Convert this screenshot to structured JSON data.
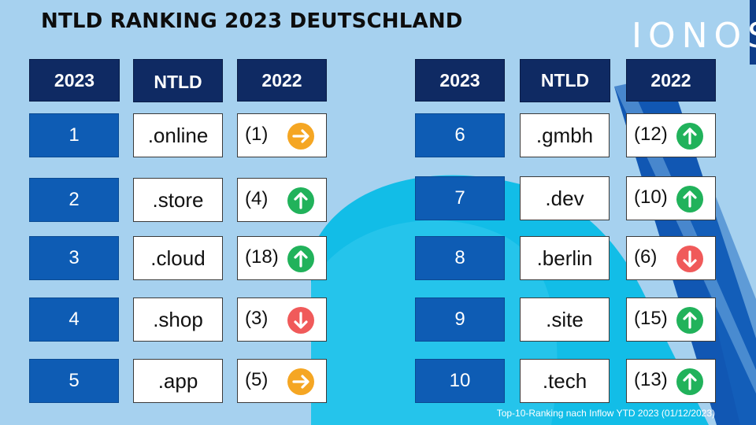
{
  "title": "NTLD RANKING 2023 DEUTSCHLAND",
  "logo": "IONOS",
  "headers": {
    "year_current": "2023",
    "ntld": "NTLD",
    "year_previous": "2022"
  },
  "colors": {
    "up": "#21b25b",
    "same": "#f5a623",
    "down": "#f05a5a",
    "header_bg": "#0f2a63",
    "rank_bg": "#0e5cb4"
  },
  "rows": [
    {
      "rank": "1",
      "tld": ".online",
      "prev": "(1)",
      "trend": "same"
    },
    {
      "rank": "2",
      "tld": ".store",
      "prev": "(4)",
      "trend": "up"
    },
    {
      "rank": "3",
      "tld": ".cloud",
      "prev": "(18)",
      "trend": "up"
    },
    {
      "rank": "4",
      "tld": ".shop",
      "prev": "(3)",
      "trend": "down"
    },
    {
      "rank": "5",
      "tld": ".app",
      "prev": "(5)",
      "trend": "same"
    },
    {
      "rank": "6",
      "tld": ".gmbh",
      "prev": "(12)",
      "trend": "up"
    },
    {
      "rank": "7",
      "tld": ".dev",
      "prev": "(10)",
      "trend": "up"
    },
    {
      "rank": "8",
      "tld": ".berlin",
      "prev": "(6)",
      "trend": "down"
    },
    {
      "rank": "9",
      "tld": ".site",
      "prev": "(15)",
      "trend": "up"
    },
    {
      "rank": "10",
      "tld": ".tech",
      "prev": "(13)",
      "trend": "up"
    }
  ],
  "footnote": "Top-10-Ranking nach Inflow YTD 2023 (01/12/2023)"
}
